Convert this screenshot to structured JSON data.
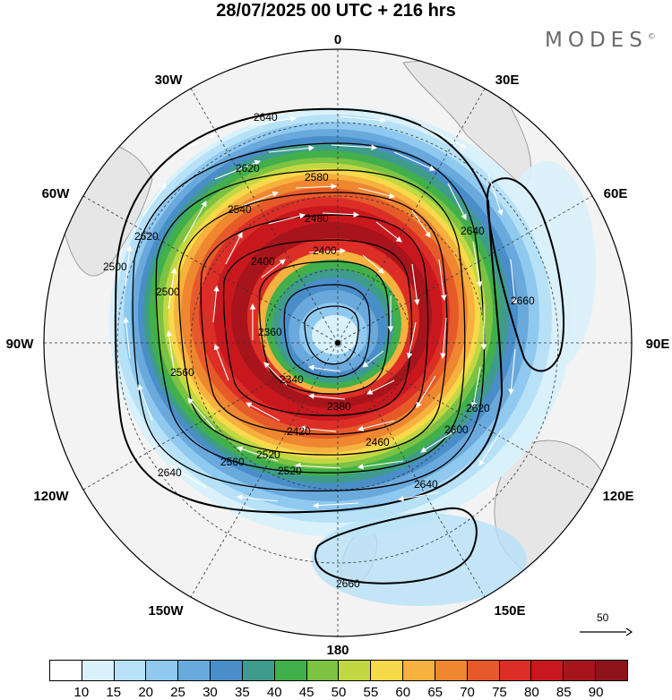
{
  "header": {
    "title": "28/07/2025  00 UTC  + 216 hrs",
    "brand": "MODES",
    "brand_mark": "©"
  },
  "map": {
    "projection": "south-polar-stereographic",
    "longitude_labels": [
      {
        "deg": 0,
        "text": "0"
      },
      {
        "deg": 30,
        "text": "30E"
      },
      {
        "deg": 60,
        "text": "60E"
      },
      {
        "deg": 90,
        "text": "90E"
      },
      {
        "deg": 120,
        "text": "120E"
      },
      {
        "deg": 150,
        "text": "150E"
      },
      {
        "deg": 180,
        "text": "180"
      },
      {
        "deg": -150,
        "text": "150W"
      },
      {
        "deg": -120,
        "text": "120W"
      },
      {
        "deg": -90,
        "text": "90W"
      },
      {
        "deg": -60,
        "text": "60W"
      },
      {
        "deg": -30,
        "text": "30W"
      }
    ],
    "contour_labels": [
      "2640",
      "2620",
      "2580",
      "2540",
      "2480",
      "2400",
      "2400",
      "2500",
      "2360",
      "2340",
      "2380",
      "2420",
      "2460",
      "2520",
      "2560",
      "2600",
      "2620",
      "2640",
      "2640",
      "2660",
      "2660",
      "2640",
      "2620",
      "2560",
      "2520",
      "2500"
    ],
    "background_color": "#f2f2f2",
    "land_color": "#e8e8e8"
  },
  "colorbar": {
    "colors": [
      "#ffffff",
      "#d9f1fb",
      "#b7e1f7",
      "#8fc9ef",
      "#6aa9dc",
      "#4a8ec9",
      "#3f9c8c",
      "#41b04a",
      "#7cc243",
      "#c2d842",
      "#f8d94a",
      "#f6b13e",
      "#ef8630",
      "#e65a2a",
      "#dc2e26",
      "#c8181e",
      "#a8141b",
      "#8c1419"
    ],
    "labels": [
      "10",
      "15",
      "20",
      "25",
      "30",
      "35",
      "40",
      "45",
      "50",
      "55",
      "60",
      "65",
      "70",
      "75",
      "80",
      "85",
      "90"
    ]
  },
  "reference_vector": {
    "value": "50"
  }
}
